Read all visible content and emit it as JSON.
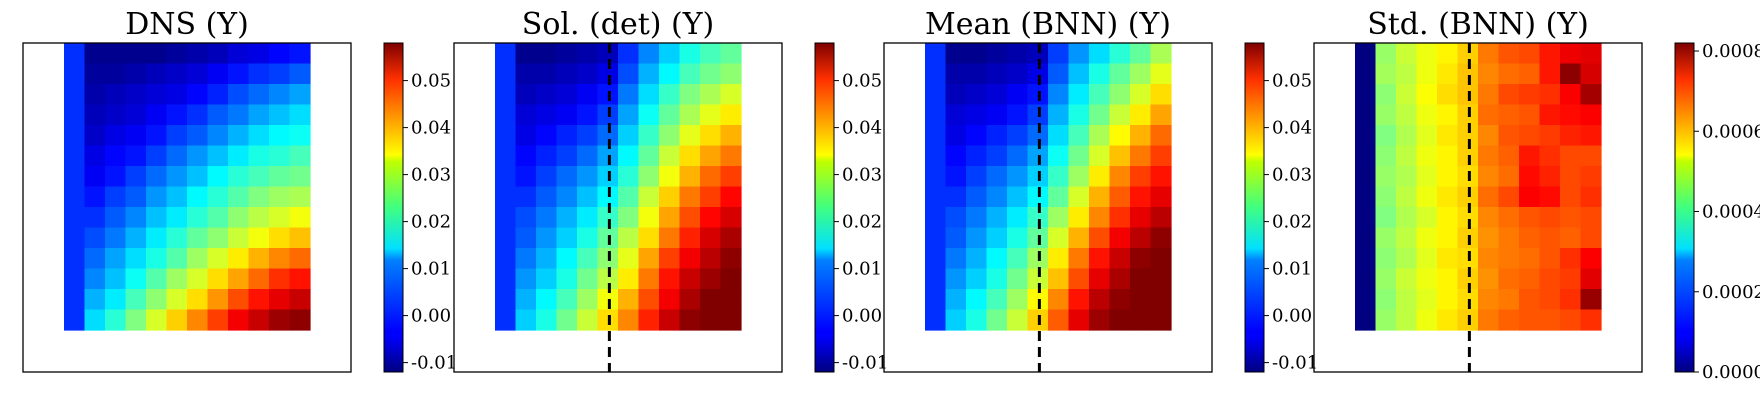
{
  "chart_data": [
    {
      "type": "heatmap",
      "title": "DNS (Y)",
      "colormap": "jet",
      "colorbar": {
        "vmin": -0.012,
        "vmax": 0.058,
        "ticks": [
          "-0.01",
          "0.00",
          "0.01",
          "0.02",
          "0.03",
          "0.04",
          "0.05"
        ],
        "tick_values": [
          -0.01,
          0.0,
          0.01,
          0.02,
          0.03,
          0.04,
          0.05
        ]
      },
      "grid": {
        "rows": 14,
        "cols": 12
      },
      "divider": null,
      "values": [
        [
          0.0,
          -0.011,
          -0.011,
          -0.011,
          -0.011,
          -0.01,
          -0.009,
          -0.008,
          -0.006,
          -0.005,
          -0.003,
          -0.002
        ],
        [
          0.0,
          -0.01,
          -0.01,
          -0.009,
          -0.008,
          -0.007,
          -0.006,
          -0.004,
          -0.002,
          0.0,
          0.001,
          0.003
        ],
        [
          0.0,
          -0.009,
          -0.008,
          -0.007,
          -0.006,
          -0.005,
          -0.003,
          -0.001,
          0.002,
          0.004,
          0.006,
          0.008
        ],
        [
          0.0,
          -0.008,
          -0.007,
          -0.006,
          -0.004,
          -0.002,
          0.0,
          0.003,
          0.005,
          0.008,
          0.01,
          0.012
        ],
        [
          0.0,
          -0.007,
          -0.005,
          -0.004,
          -0.002,
          0.001,
          0.003,
          0.006,
          0.009,
          0.012,
          0.014,
          0.015
        ],
        [
          0.0,
          -0.005,
          -0.003,
          -0.002,
          0.001,
          0.004,
          0.007,
          0.01,
          0.013,
          0.016,
          0.017,
          0.019
        ],
        [
          0.0,
          -0.004,
          -0.002,
          0.001,
          0.004,
          0.007,
          0.01,
          0.014,
          0.017,
          0.019,
          0.021,
          0.022
        ],
        [
          0.0,
          -0.002,
          0.001,
          0.003,
          0.007,
          0.01,
          0.014,
          0.017,
          0.02,
          0.023,
          0.025,
          0.026
        ],
        [
          0.0,
          0.0,
          0.003,
          0.006,
          0.01,
          0.013,
          0.017,
          0.02,
          0.024,
          0.027,
          0.029,
          0.031
        ],
        [
          0.0,
          0.002,
          0.005,
          0.009,
          0.013,
          0.017,
          0.021,
          0.024,
          0.028,
          0.031,
          0.034,
          0.036
        ],
        [
          0.0,
          0.004,
          0.008,
          0.012,
          0.016,
          0.02,
          0.025,
          0.029,
          0.033,
          0.037,
          0.04,
          0.042
        ],
        [
          0.0,
          0.006,
          0.01,
          0.015,
          0.02,
          0.025,
          0.029,
          0.034,
          0.038,
          0.042,
          0.046,
          0.048
        ],
        [
          0.0,
          0.009,
          0.013,
          0.019,
          0.024,
          0.029,
          0.034,
          0.039,
          0.044,
          0.048,
          0.051,
          0.053
        ],
        [
          0.0,
          0.012,
          0.017,
          0.023,
          0.029,
          0.035,
          0.04,
          0.045,
          0.05,
          0.053,
          0.056,
          0.057
        ]
      ]
    },
    {
      "type": "heatmap",
      "title": "Sol. (det) (Y)",
      "colormap": "jet",
      "colorbar": {
        "vmin": -0.012,
        "vmax": 0.058,
        "ticks": [
          "-0.01",
          "0.00",
          "0.01",
          "0.02",
          "0.03",
          "0.04",
          "0.05"
        ],
        "tick_values": [
          -0.01,
          0.0,
          0.01,
          0.02,
          0.03,
          0.04,
          0.05
        ]
      },
      "grid": {
        "rows": 14,
        "cols": 12
      },
      "divider": {
        "style": "dashed",
        "col_fraction": 0.465
      },
      "values": [
        [
          0.0,
          -0.011,
          -0.011,
          -0.01,
          -0.009,
          -0.008,
          0.0,
          0.006,
          0.011,
          0.016,
          0.019,
          0.021
        ],
        [
          0.0,
          -0.009,
          -0.009,
          -0.008,
          -0.007,
          -0.005,
          0.002,
          0.009,
          0.014,
          0.019,
          0.022,
          0.024
        ],
        [
          0.0,
          -0.008,
          -0.007,
          -0.006,
          -0.004,
          -0.002,
          0.005,
          0.012,
          0.018,
          0.023,
          0.026,
          0.029
        ],
        [
          0.0,
          -0.006,
          -0.005,
          -0.004,
          -0.002,
          0.001,
          0.008,
          0.015,
          0.021,
          0.026,
          0.03,
          0.033
        ],
        [
          0.0,
          -0.005,
          -0.003,
          -0.001,
          0.001,
          0.004,
          0.011,
          0.018,
          0.024,
          0.03,
          0.034,
          0.037
        ],
        [
          0.0,
          -0.003,
          -0.001,
          0.001,
          0.004,
          0.008,
          0.014,
          0.021,
          0.028,
          0.034,
          0.038,
          0.041
        ],
        [
          0.0,
          -0.002,
          0.001,
          0.004,
          0.007,
          0.011,
          0.017,
          0.024,
          0.031,
          0.037,
          0.042,
          0.045
        ],
        [
          0.0,
          0.0,
          0.003,
          0.006,
          0.01,
          0.014,
          0.02,
          0.028,
          0.035,
          0.041,
          0.045,
          0.049
        ],
        [
          0.0,
          0.002,
          0.005,
          0.009,
          0.013,
          0.018,
          0.023,
          0.031,
          0.038,
          0.044,
          0.049,
          0.052
        ],
        [
          0.0,
          0.003,
          0.007,
          0.011,
          0.016,
          0.021,
          0.027,
          0.034,
          0.041,
          0.047,
          0.052,
          0.055
        ],
        [
          0.0,
          0.005,
          0.009,
          0.014,
          0.019,
          0.024,
          0.03,
          0.038,
          0.045,
          0.05,
          0.054,
          0.057
        ],
        [
          0.0,
          0.007,
          0.011,
          0.016,
          0.022,
          0.027,
          0.033,
          0.041,
          0.048,
          0.053,
          0.056,
          0.058
        ],
        [
          0.0,
          0.009,
          0.014,
          0.019,
          0.025,
          0.031,
          0.037,
          0.044,
          0.05,
          0.055,
          0.058,
          0.058
        ],
        [
          0.0,
          0.011,
          0.016,
          0.022,
          0.028,
          0.034,
          0.04,
          0.047,
          0.053,
          0.057,
          0.058,
          0.058
        ]
      ]
    },
    {
      "type": "heatmap",
      "title": "Mean (BNN) (Y)",
      "colormap": "jet",
      "colorbar": {
        "vmin": -0.012,
        "vmax": 0.058,
        "ticks": [
          "-0.01",
          "0.00",
          "0.01",
          "0.02",
          "0.03",
          "0.04",
          "0.05"
        ],
        "tick_values": [
          -0.01,
          0.0,
          0.01,
          0.02,
          0.03,
          0.04,
          0.05
        ]
      },
      "grid": {
        "rows": 14,
        "cols": 12
      },
      "divider": {
        "style": "dashed",
        "col_fraction": 0.465
      },
      "values": [
        [
          0.0,
          -0.011,
          -0.011,
          -0.01,
          -0.009,
          -0.008,
          0.001,
          0.007,
          0.012,
          0.017,
          0.021,
          0.026
        ],
        [
          0.0,
          -0.009,
          -0.009,
          -0.008,
          -0.007,
          -0.005,
          0.003,
          0.01,
          0.016,
          0.021,
          0.025,
          0.03
        ],
        [
          0.0,
          -0.008,
          -0.007,
          -0.006,
          -0.004,
          -0.002,
          0.006,
          0.013,
          0.019,
          0.024,
          0.029,
          0.034
        ],
        [
          0.0,
          -0.006,
          -0.005,
          -0.004,
          -0.002,
          0.001,
          0.009,
          0.016,
          0.022,
          0.028,
          0.033,
          0.038
        ],
        [
          0.0,
          -0.005,
          -0.003,
          -0.001,
          0.001,
          0.004,
          0.012,
          0.019,
          0.026,
          0.032,
          0.037,
          0.042
        ],
        [
          0.0,
          -0.003,
          -0.001,
          0.001,
          0.004,
          0.008,
          0.015,
          0.022,
          0.029,
          0.036,
          0.041,
          0.045
        ],
        [
          0.0,
          -0.002,
          0.001,
          0.004,
          0.007,
          0.011,
          0.018,
          0.025,
          0.033,
          0.04,
          0.045,
          0.048
        ],
        [
          0.0,
          0.0,
          0.003,
          0.006,
          0.01,
          0.014,
          0.021,
          0.029,
          0.037,
          0.043,
          0.048,
          0.051
        ],
        [
          0.0,
          0.002,
          0.005,
          0.009,
          0.013,
          0.018,
          0.025,
          0.033,
          0.04,
          0.046,
          0.051,
          0.054
        ],
        [
          0.0,
          0.003,
          0.007,
          0.011,
          0.016,
          0.021,
          0.029,
          0.037,
          0.044,
          0.05,
          0.054,
          0.057
        ],
        [
          0.0,
          0.005,
          0.009,
          0.014,
          0.019,
          0.025,
          0.033,
          0.041,
          0.048,
          0.053,
          0.057,
          0.058
        ],
        [
          0.0,
          0.007,
          0.011,
          0.016,
          0.022,
          0.028,
          0.036,
          0.044,
          0.051,
          0.055,
          0.058,
          0.058
        ],
        [
          0.0,
          0.009,
          0.014,
          0.019,
          0.025,
          0.032,
          0.04,
          0.048,
          0.054,
          0.057,
          0.058,
          0.058
        ],
        [
          0.0,
          0.011,
          0.016,
          0.022,
          0.028,
          0.035,
          0.043,
          0.051,
          0.056,
          0.058,
          0.058,
          0.058
        ]
      ]
    },
    {
      "type": "heatmap",
      "title": "Std. (BNN) (Y)",
      "colormap": "jet",
      "colorbar": {
        "vmin": 0.0,
        "vmax": 0.00082,
        "ticks": [
          "0.0000",
          "0.0002",
          "0.0004",
          "0.0006",
          "0.0008"
        ],
        "tick_values": [
          0.0,
          0.0002,
          0.0004,
          0.0006,
          0.0008
        ]
      },
      "grid": {
        "rows": 14,
        "cols": 12
      },
      "divider": {
        "style": "dashed",
        "col_fraction": 0.465
      },
      "values": [
        [
          0.0,
          0.00043,
          0.00047,
          0.0005,
          0.00052,
          0.00055,
          0.00062,
          0.00065,
          0.00066,
          0.0007,
          0.00073,
          0.00074
        ],
        [
          0.0,
          0.00044,
          0.00046,
          0.0005,
          0.00053,
          0.00056,
          0.00061,
          0.00063,
          0.00064,
          0.0007,
          0.00081,
          0.00075
        ],
        [
          0.0,
          0.00042,
          0.00047,
          0.00051,
          0.00054,
          0.00056,
          0.00062,
          0.00066,
          0.00067,
          0.00068,
          0.00072,
          0.00079
        ],
        [
          0.0,
          0.00043,
          0.00046,
          0.0005,
          0.00052,
          0.00055,
          0.00063,
          0.00064,
          0.00065,
          0.0007,
          0.00071,
          0.00072
        ],
        [
          0.0,
          0.00041,
          0.00045,
          0.00049,
          0.00053,
          0.00055,
          0.00061,
          0.00065,
          0.00066,
          0.00067,
          0.00069,
          0.0007
        ],
        [
          0.0,
          0.00042,
          0.00046,
          0.0005,
          0.00052,
          0.00055,
          0.00062,
          0.00064,
          0.0007,
          0.00068,
          0.00066,
          0.00066
        ],
        [
          0.0,
          0.00043,
          0.00045,
          0.00049,
          0.00052,
          0.00054,
          0.00061,
          0.00063,
          0.00071,
          0.00069,
          0.00066,
          0.00067
        ],
        [
          0.0,
          0.00042,
          0.00046,
          0.0005,
          0.00053,
          0.00055,
          0.00063,
          0.00066,
          0.00072,
          0.00071,
          0.00066,
          0.00068
        ],
        [
          0.0,
          0.00041,
          0.00045,
          0.00048,
          0.00052,
          0.00054,
          0.00061,
          0.00063,
          0.00065,
          0.00066,
          0.00065,
          0.00066
        ],
        [
          0.0,
          0.00043,
          0.00046,
          0.0005,
          0.00052,
          0.00055,
          0.0006,
          0.00062,
          0.00064,
          0.00065,
          0.00064,
          0.00066
        ],
        [
          0.0,
          0.00042,
          0.00045,
          0.00049,
          0.00053,
          0.00054,
          0.00061,
          0.00062,
          0.00063,
          0.00065,
          0.00068,
          0.00072
        ],
        [
          0.0,
          0.00043,
          0.00047,
          0.0005,
          0.00052,
          0.00055,
          0.0006,
          0.00063,
          0.00064,
          0.00066,
          0.00067,
          0.00074
        ],
        [
          0.0,
          0.00042,
          0.00046,
          0.00049,
          0.00052,
          0.00054,
          0.00061,
          0.00062,
          0.00065,
          0.00066,
          0.00068,
          0.0008
        ],
        [
          0.0,
          0.00043,
          0.00046,
          0.0005,
          0.00053,
          0.00055,
          0.00062,
          0.00064,
          0.00065,
          0.00065,
          0.00066,
          0.00068
        ]
      ]
    }
  ]
}
